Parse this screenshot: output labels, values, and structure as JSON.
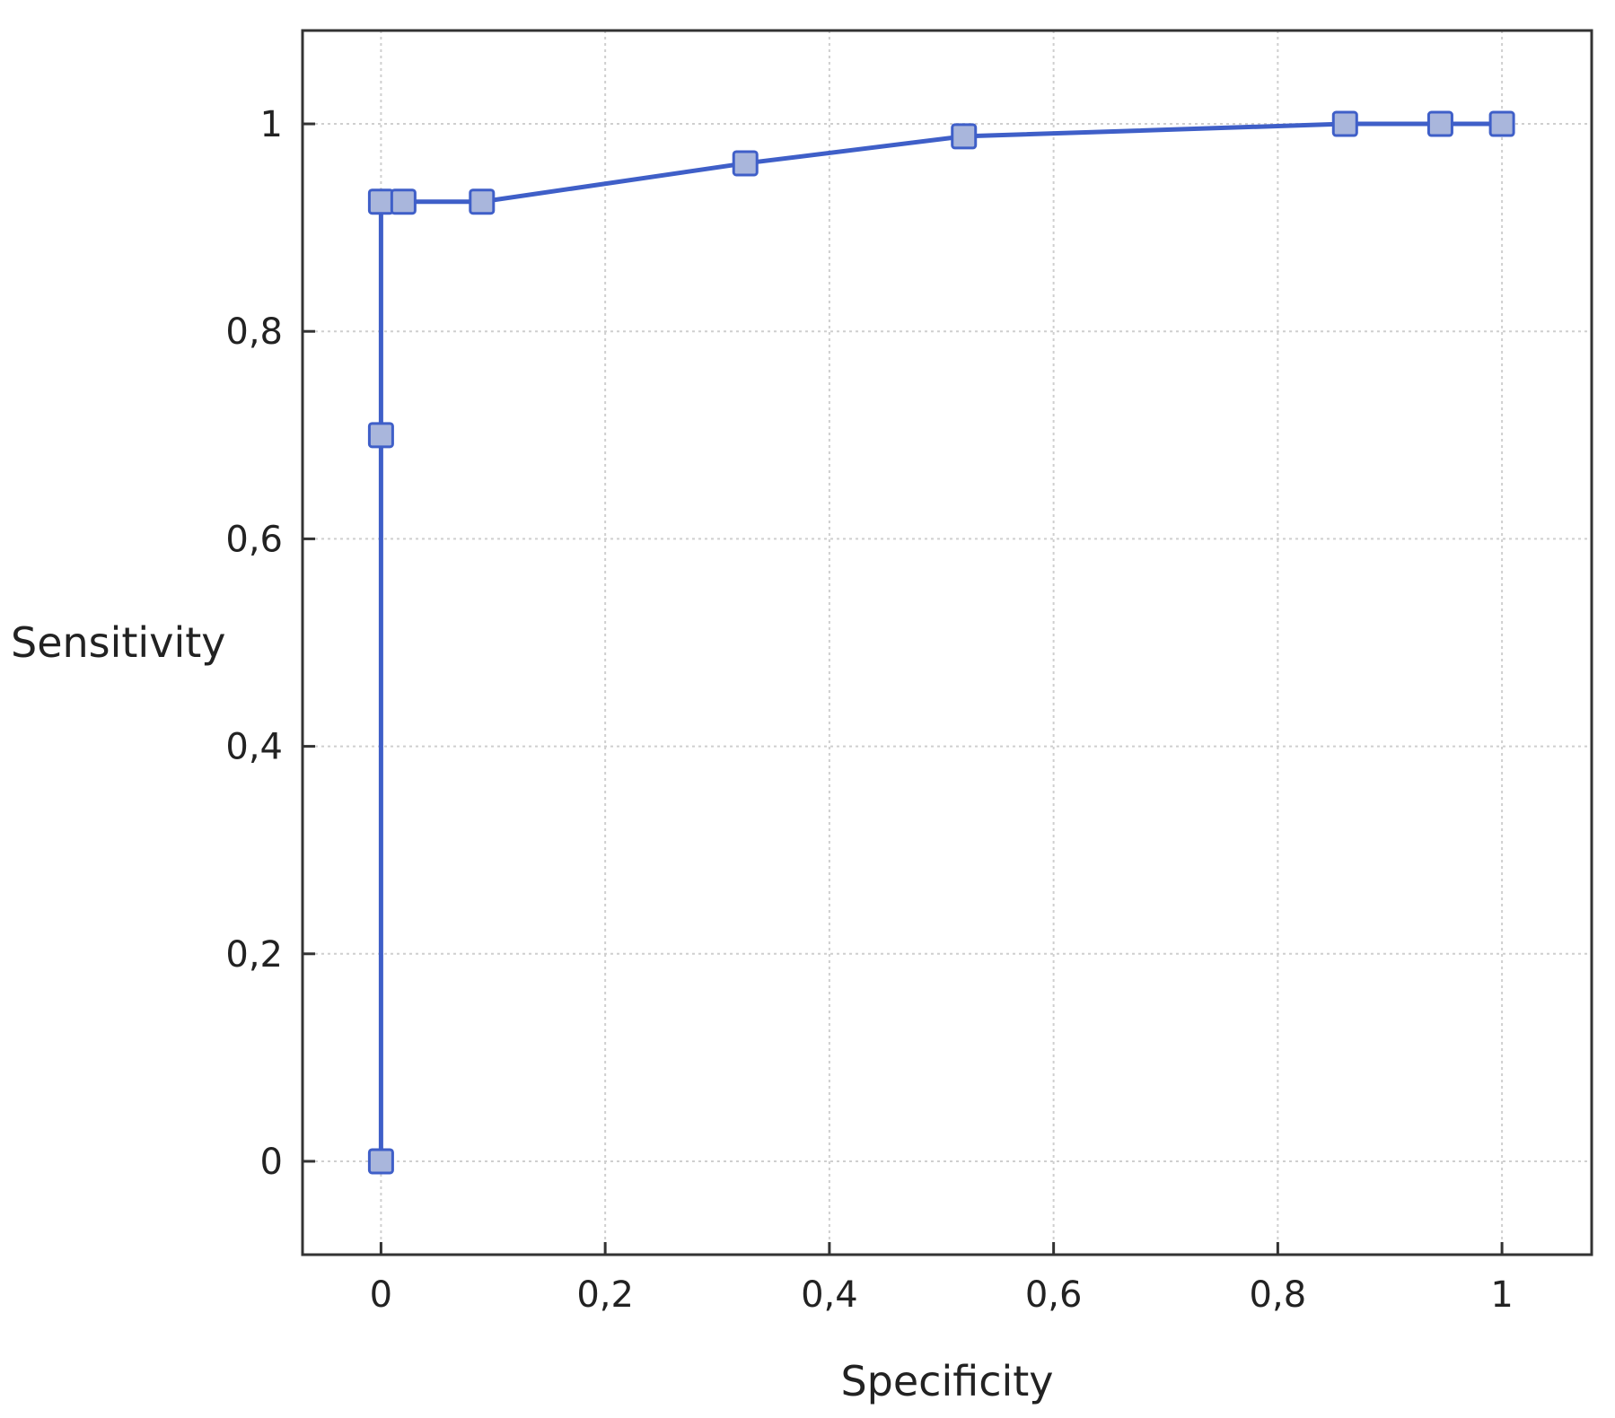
{
  "chart_data": {
    "type": "line",
    "title": "",
    "xlabel": "Specificity",
    "ylabel": "Sensitivity",
    "xlim": [
      -0.07,
      1.08
    ],
    "ylim": [
      -0.09,
      1.09
    ],
    "grid": true,
    "x_ticks": [
      0,
      0.2,
      0.4,
      0.6,
      0.8,
      1
    ],
    "x_tick_labels": [
      "0",
      "0,2",
      "0,4",
      "0,6",
      "0,8",
      "1"
    ],
    "y_ticks": [
      0,
      0.2,
      0.4,
      0.6,
      0.8,
      1
    ],
    "y_tick_labels": [
      "0",
      "0,2",
      "0,4",
      "0,6",
      "0,8",
      "1"
    ],
    "series": [
      {
        "marker": "square",
        "color": "#3f5fc8",
        "marker_fill": "#a9b6dc",
        "x": [
          0,
          0,
          0,
          0.02,
          0.09,
          0.325,
          0.52,
          0.86,
          0.945,
          1
        ],
        "y": [
          0,
          0.7,
          0.925,
          0.925,
          0.925,
          0.962,
          0.988,
          1,
          1,
          1
        ]
      }
    ]
  }
}
